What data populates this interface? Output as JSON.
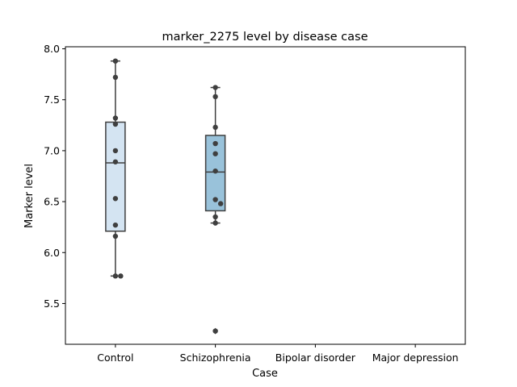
{
  "chart_data": {
    "type": "box",
    "title": "marker_2275 level by disease case",
    "xlabel": "Case",
    "ylabel": "Marker level",
    "categories": [
      "Control",
      "Schizophrenia",
      "Bipolar disorder",
      "Major depression"
    ],
    "ylim": [
      5.1,
      8.02
    ],
    "yticks": [
      5.5,
      6.0,
      6.5,
      7.0,
      7.5,
      8.0
    ],
    "ytick_labels": [
      "5.5",
      "6.0",
      "6.5",
      "7.0",
      "7.5",
      "8.0"
    ],
    "grid": false,
    "boxes": [
      {
        "category": "Control",
        "color": "#d4e4f2",
        "q1": 6.21,
        "median": 6.88,
        "q3": 7.28,
        "whisker_low": 5.77,
        "whisker_high": 7.88,
        "outliers": []
      },
      {
        "category": "Schizophrenia",
        "color": "#99c2da",
        "q1": 6.41,
        "median": 6.79,
        "q3": 7.15,
        "whisker_low": 6.29,
        "whisker_high": 7.62,
        "outliers": [
          5.23
        ]
      }
    ],
    "points": [
      {
        "category": "Control",
        "values": [
          7.88,
          7.72,
          7.32,
          7.26,
          7.0,
          6.89,
          6.53,
          6.27,
          6.16,
          5.77,
          5.77
        ]
      },
      {
        "category": "Schizophrenia",
        "values": [
          7.62,
          7.53,
          7.23,
          7.07,
          6.97,
          6.8,
          6.52,
          6.48,
          6.35,
          6.29,
          5.23
        ]
      }
    ],
    "colors": {
      "box_edge": "#3f3f3f",
      "point": "#3f3f3f",
      "axis": "#000000"
    }
  }
}
